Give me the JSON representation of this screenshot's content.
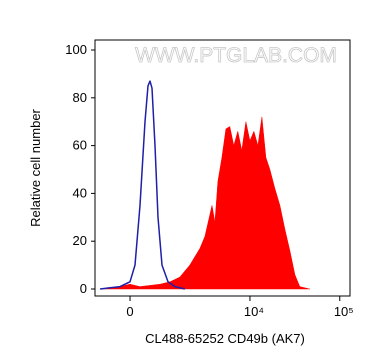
{
  "chart_data": {
    "type": "histogram-overlay",
    "xlabel": "CL488-65252 CD49b (AK7)",
    "ylabel": "Relative cell number",
    "watermark": "WWW.PTGLAB.COM",
    "xscale": "arcsinh",
    "xscale_cofactor": 929,
    "xlim": [
      -950,
      130000
    ],
    "xticks": [
      0,
      {
        "value": 10000,
        "label": "10⁴"
      },
      {
        "value": 100000,
        "label": "10⁵"
      }
    ],
    "ylim": [
      0,
      100
    ],
    "yticks": [
      0,
      20,
      40,
      60,
      80,
      100
    ],
    "series": [
      {
        "color": "#ff0000",
        "fill": true,
        "x": [
          -785,
          -240,
          0,
          240,
          785,
          1127,
          1533,
          2046,
          2700,
          3095,
          3733,
          4027,
          4363,
          4846,
          5370,
          5951,
          6596,
          7311,
          8118,
          9008,
          9990,
          11066,
          12267,
          13590,
          15059,
          16690,
          18980,
          21570,
          24520,
          27850,
          31650,
          35960,
          46440
        ],
        "values": [
          0,
          1,
          2,
          1,
          2,
          3,
          5,
          10,
          17,
          22,
          35,
          28,
          45,
          55,
          67,
          68,
          60,
          66,
          58,
          70,
          62,
          66,
          60,
          72,
          55,
          50,
          42,
          35,
          25,
          16,
          6,
          1,
          0
        ]
      },
      {
        "color": "#1f1fa8",
        "fill": false,
        "x": [
          -785,
          -496,
          -240,
          0,
          119,
          240,
          365,
          443,
          496,
          551,
          635,
          724,
          849,
          1052,
          1322,
          1773
        ],
        "values": [
          0,
          0.5,
          1,
          3,
          10,
          35,
          70,
          85,
          87,
          84,
          60,
          30,
          10,
          3,
          1,
          0
        ]
      }
    ]
  }
}
